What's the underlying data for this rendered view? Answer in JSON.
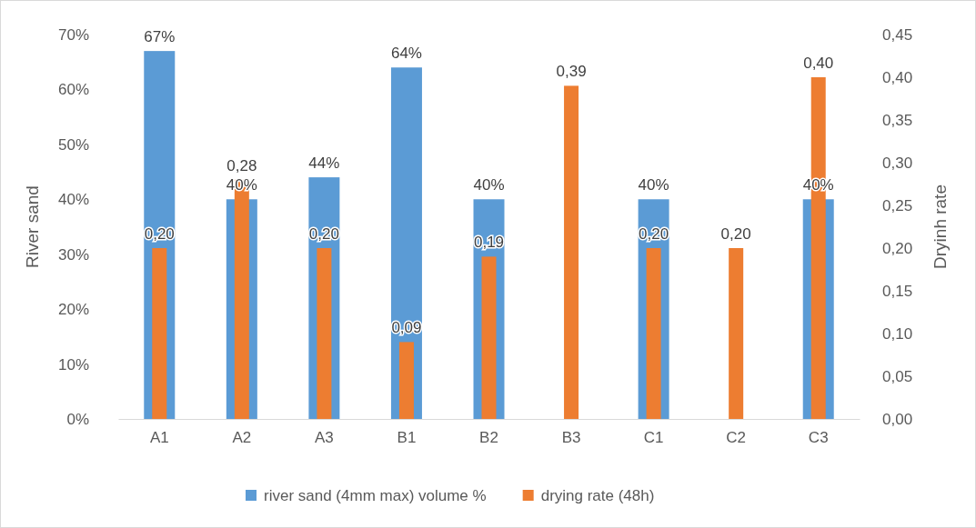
{
  "chart_data": {
    "type": "bar",
    "categories": [
      "A1",
      "A2",
      "A3",
      "B1",
      "B2",
      "B3",
      "C1",
      "C2",
      "C3"
    ],
    "ylabel": "River sand",
    "y2label": "Dryinh rate",
    "ylim": [
      0,
      70
    ],
    "yticks": [
      {
        "value": 0,
        "label": "0%"
      },
      {
        "value": 10,
        "label": "10%"
      },
      {
        "value": 20,
        "label": "20%"
      },
      {
        "value": 30,
        "label": "30%"
      },
      {
        "value": 40,
        "label": "40%"
      },
      {
        "value": 50,
        "label": "50%"
      },
      {
        "value": 60,
        "label": "60%"
      },
      {
        "value": 70,
        "label": "70%"
      }
    ],
    "y2lim": [
      0,
      0.45
    ],
    "y2ticks": [
      {
        "value": 0,
        "label": "0,00"
      },
      {
        "value": 0.05,
        "label": "0,05"
      },
      {
        "value": 0.1,
        "label": "0,10"
      },
      {
        "value": 0.15,
        "label": "0,15"
      },
      {
        "value": 0.2,
        "label": "0,20"
      },
      {
        "value": 0.25,
        "label": "0,25"
      },
      {
        "value": 0.3,
        "label": "0,30"
      },
      {
        "value": 0.35,
        "label": "0,35"
      },
      {
        "value": 0.4,
        "label": "0,40"
      },
      {
        "value": 0.45,
        "label": "0,45"
      }
    ],
    "series": [
      {
        "name": "river sand (4mm max) volume %",
        "color": "#5b9bd5",
        "values": [
          67,
          40,
          44,
          64,
          40,
          null,
          40,
          null,
          40
        ],
        "value_labels": [
          "67%",
          "40%",
          "44%",
          "64%",
          "40%",
          null,
          "40%",
          null,
          "40%"
        ]
      },
      {
        "name": "drying rate (48h)",
        "color": "#ed7d31",
        "axis": "y2",
        "values": [
          0.2,
          0.28,
          0.2,
          0.09,
          0.19,
          0.39,
          0.2,
          0.2,
          0.4
        ],
        "value_labels": [
          "0,20",
          "0,28",
          "0,20",
          "0,09",
          "0,19",
          "0,39",
          "0,20",
          "0,20",
          "0,40"
        ]
      }
    ],
    "legend": "bottom",
    "grid": false
  }
}
